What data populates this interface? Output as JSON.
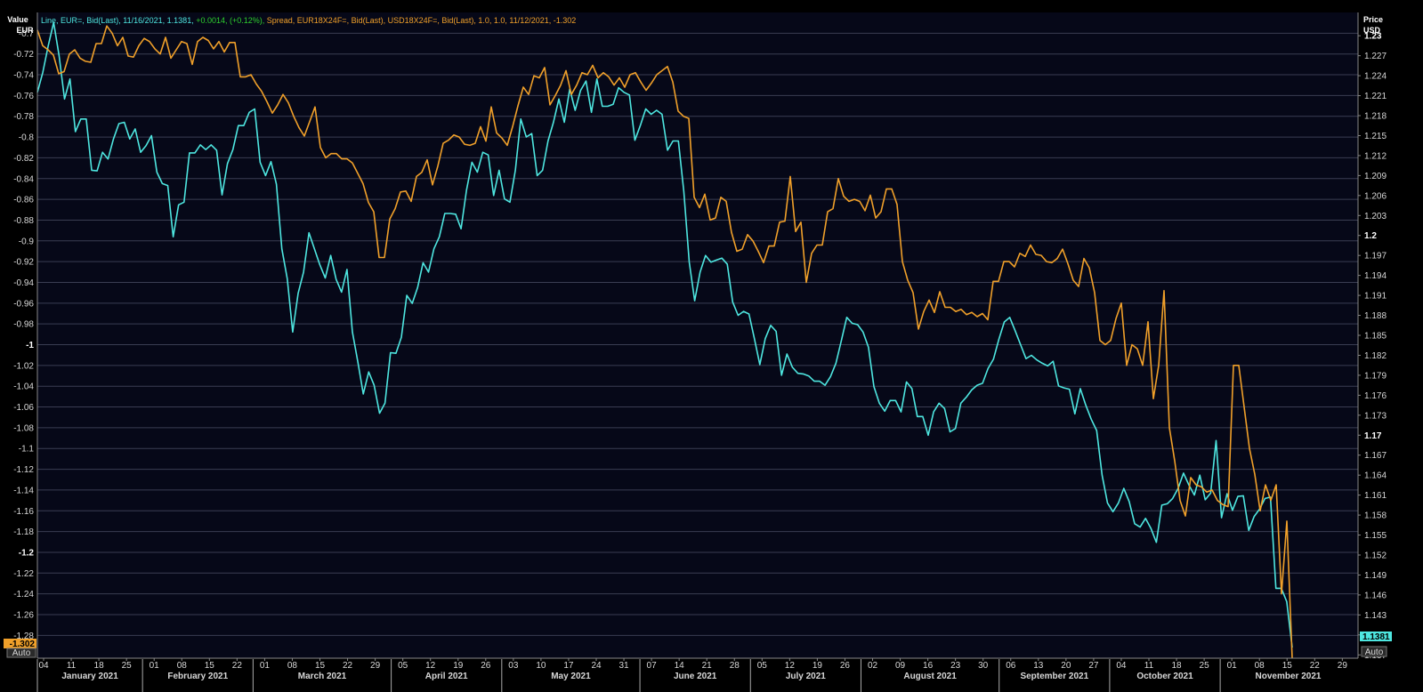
{
  "header": {
    "left_axis_title": "Value",
    "left_axis_unit": "EUR",
    "right_axis_title": "Price",
    "right_axis_unit": "USD",
    "auto_left": "Auto",
    "auto_right": "Auto"
  },
  "legend": {
    "line_part": "Line, EUR=, Bid(Last),  11/16/2021, 1.1381, ",
    "line_change": "+0.0014, (+0.12%), ",
    "spread_part": "Spread, EUR18X24F=, Bid(Last), USD18X24F=, Bid(Last),  1.0, 1.0,  11/12/2021, -1.302"
  },
  "colors": {
    "background": "#060818",
    "grid": "#3a3d52",
    "eurusd": "#4ee6e0",
    "spread": "#f0a02a",
    "change_positive": "#2ed02e"
  },
  "chart_data": {
    "type": "line",
    "x_axis": {
      "month_labels": [
        "January 2021",
        "February 2021",
        "March 2021",
        "April 2021",
        "May 2021",
        "June 2021",
        "July 2021",
        "August 2021",
        "September 2021",
        "October 2021",
        "November 2021"
      ],
      "day_ticks": [
        "04",
        "11",
        "18",
        "25",
        "01",
        "08",
        "15",
        "22",
        "01",
        "08",
        "15",
        "22",
        "29",
        "05",
        "12",
        "19",
        "26",
        "03",
        "10",
        "17",
        "24",
        "31",
        "07",
        "14",
        "21",
        "28",
        "05",
        "12",
        "19",
        "26",
        "02",
        "09",
        "16",
        "23",
        "30",
        "06",
        "13",
        "20",
        "27",
        "04",
        "11",
        "18",
        "25",
        "01",
        "08",
        "15",
        "22",
        "29"
      ]
    },
    "left_axis": {
      "title": "Value EUR",
      "ylim": [
        -1.302,
        -0.68
      ],
      "ticks": [
        "-0.7",
        "-0.72",
        "-0.74",
        "-0.76",
        "-0.78",
        "-0.8",
        "-0.82",
        "-0.84",
        "-0.86",
        "-0.88",
        "-0.9",
        "-0.92",
        "-0.94",
        "-0.96",
        "-0.98",
        "-1",
        "-1.02",
        "-1.04",
        "-1.06",
        "-1.08",
        "-1.1",
        "-1.12",
        "-1.14",
        "-1.16",
        "-1.18",
        "-1.2",
        "-1.22",
        "-1.24",
        "-1.26",
        "-1.28"
      ],
      "bold_ticks": [
        "-1",
        "-1.2"
      ],
      "last_value_label": "-1.302"
    },
    "right_axis": {
      "title": "Price USD",
      "ylim": [
        1.1365,
        1.2335
      ],
      "ticks": [
        "1.23",
        "1.227",
        "1.224",
        "1.221",
        "1.218",
        "1.215",
        "1.212",
        "1.209",
        "1.206",
        "1.203",
        "1.2",
        "1.197",
        "1.194",
        "1.191",
        "1.188",
        "1.185",
        "1.182",
        "1.179",
        "1.176",
        "1.173",
        "1.17",
        "1.167",
        "1.164",
        "1.161",
        "1.158",
        "1.155",
        "1.152",
        "1.149",
        "1.146",
        "1.143",
        "1.14",
        "1.137"
      ],
      "bold_ticks": [
        "1.23",
        "1.2",
        "1.17",
        "1.14"
      ],
      "last_value_label": "1.1381"
    },
    "series": [
      {
        "name": "EUR= Bid(Last)",
        "axis": "right",
        "values": [
          1.2215,
          1.2245,
          1.2285,
          1.232,
          1.227,
          1.2205,
          1.2235,
          1.2156,
          1.2175,
          1.2175,
          1.2098,
          1.2097,
          1.2125,
          1.2115,
          1.2145,
          1.2168,
          1.217,
          1.2145,
          1.216,
          1.2125,
          1.2135,
          1.215,
          1.2095,
          1.2078,
          1.2075,
          1.1998,
          1.2046,
          1.205,
          1.2124,
          1.2124,
          1.2136,
          1.2129,
          1.2136,
          1.2128,
          1.2061,
          1.2108,
          1.2129,
          1.2165,
          1.2165,
          1.2185,
          1.219,
          1.211,
          1.209,
          1.2111,
          1.2077,
          1.198,
          1.1935,
          1.1855,
          1.1913,
          1.1945,
          1.2004,
          1.198,
          1.1956,
          1.1936,
          1.197,
          1.1934,
          1.1915,
          1.1949,
          1.1855,
          1.181,
          1.1762,
          1.1795,
          1.1775,
          1.1733,
          1.1748,
          1.1824,
          1.1823,
          1.1847,
          1.191,
          1.1898,
          1.1922,
          1.1959,
          1.1945,
          1.198,
          1.1998,
          1.2033,
          1.2033,
          1.2032,
          1.201,
          1.2068,
          1.211,
          1.2095,
          1.2125,
          1.2121,
          1.206,
          1.2098,
          1.2055,
          1.205,
          1.2098,
          1.2175,
          1.2148,
          1.2153,
          1.209,
          1.2098,
          1.2142,
          1.217,
          1.2205,
          1.217,
          1.222,
          1.2188,
          1.2218,
          1.2232,
          1.2185,
          1.2235,
          1.2194,
          1.2194,
          1.2197,
          1.2222,
          1.2215,
          1.2211,
          1.2143,
          1.2165,
          1.219,
          1.2182,
          1.2188,
          1.2182,
          1.2128,
          1.2142,
          1.2142,
          1.2066,
          1.196,
          1.1902,
          1.1945,
          1.197,
          1.196,
          1.1963,
          1.1966,
          1.1957,
          1.19,
          1.188,
          1.1886,
          1.1882,
          1.1845,
          1.1806,
          1.1845,
          1.1865,
          1.1856,
          1.179,
          1.1822,
          1.1802,
          1.1793,
          1.1792,
          1.1789,
          1.1781,
          1.1781,
          1.1775,
          1.1788,
          1.1808,
          1.1842,
          1.1877,
          1.1868,
          1.1866,
          1.1855,
          1.1832,
          1.1773,
          1.1748,
          1.1736,
          1.1752,
          1.1752,
          1.1735,
          1.178,
          1.177,
          1.1728,
          1.1728,
          1.17,
          1.1735,
          1.1748,
          1.174,
          1.1705,
          1.171,
          1.1748,
          1.1757,
          1.1768,
          1.1775,
          1.1778,
          1.18,
          1.1814,
          1.1844,
          1.187,
          1.1877,
          1.1857,
          1.1836,
          1.1815,
          1.182,
          1.1813,
          1.1808,
          1.1804,
          1.1811,
          1.1774,
          1.1771,
          1.1769,
          1.1732,
          1.177,
          1.1745,
          1.1724,
          1.1707,
          1.164,
          1.1598,
          1.1585,
          1.1598,
          1.162,
          1.16,
          1.1567,
          1.1562,
          1.1575,
          1.156,
          1.1539,
          1.1595,
          1.1597,
          1.1605,
          1.162,
          1.1643,
          1.1625,
          1.161,
          1.164,
          1.1603,
          1.1613,
          1.1692,
          1.1576,
          1.1612,
          1.1587,
          1.1608,
          1.1609,
          1.1557,
          1.1578,
          1.1589,
          1.1605,
          1.1607,
          1.147,
          1.147,
          1.145,
          1.1381
        ]
      },
      {
        "name": "Spread EUR18X24F= / USD18X24F=",
        "axis": "left",
        "values": [
          -0.697,
          -0.712,
          -0.716,
          -0.721,
          -0.739,
          -0.737,
          -0.72,
          -0.716,
          -0.724,
          -0.727,
          -0.728,
          -0.71,
          -0.71,
          -0.693,
          -0.7,
          -0.712,
          -0.704,
          -0.722,
          -0.723,
          -0.712,
          -0.705,
          -0.708,
          -0.715,
          -0.72,
          -0.704,
          -0.724,
          -0.716,
          -0.708,
          -0.71,
          -0.73,
          -0.708,
          -0.704,
          -0.707,
          -0.715,
          -0.708,
          -0.718,
          -0.709,
          -0.709,
          -0.742,
          -0.742,
          -0.74,
          -0.749,
          -0.756,
          -0.766,
          -0.777,
          -0.769,
          -0.759,
          -0.767,
          -0.78,
          -0.791,
          -0.799,
          -0.785,
          -0.771,
          -0.81,
          -0.82,
          -0.816,
          -0.816,
          -0.821,
          -0.821,
          -0.825,
          -0.835,
          -0.845,
          -0.863,
          -0.872,
          -0.916,
          -0.916,
          -0.879,
          -0.869,
          -0.853,
          -0.852,
          -0.862,
          -0.838,
          -0.834,
          -0.822,
          -0.846,
          -0.828,
          -0.806,
          -0.803,
          -0.798,
          -0.8,
          -0.807,
          -0.808,
          -0.806,
          -0.79,
          -0.804,
          -0.771,
          -0.796,
          -0.801,
          -0.808,
          -0.79,
          -0.77,
          -0.752,
          -0.759,
          -0.741,
          -0.743,
          -0.733,
          -0.769,
          -0.76,
          -0.75,
          -0.736,
          -0.759,
          -0.75,
          -0.738,
          -0.74,
          -0.731,
          -0.743,
          -0.738,
          -0.742,
          -0.75,
          -0.743,
          -0.752,
          -0.74,
          -0.738,
          -0.747,
          -0.755,
          -0.748,
          -0.74,
          -0.736,
          -0.732,
          -0.747,
          -0.775,
          -0.78,
          -0.782,
          -0.858,
          -0.868,
          -0.855,
          -0.88,
          -0.878,
          -0.858,
          -0.862,
          -0.892,
          -0.91,
          -0.908,
          -0.894,
          -0.9,
          -0.91,
          -0.921,
          -0.905,
          -0.905,
          -0.882,
          -0.881,
          -0.838,
          -0.891,
          -0.882,
          -0.94,
          -0.912,
          -0.904,
          -0.904,
          -0.872,
          -0.869,
          -0.84,
          -0.857,
          -0.862,
          -0.86,
          -0.862,
          -0.871,
          -0.856,
          -0.878,
          -0.872,
          -0.85,
          -0.85,
          -0.865,
          -0.92,
          -0.938,
          -0.95,
          -0.985,
          -0.968,
          -0.957,
          -0.969,
          -0.949,
          -0.964,
          -0.964,
          -0.968,
          -0.966,
          -0.971,
          -0.969,
          -0.973,
          -0.97,
          -0.976,
          -0.939,
          -0.939,
          -0.92,
          -0.92,
          -0.925,
          -0.912,
          -0.915,
          -0.904,
          -0.913,
          -0.914,
          -0.92,
          -0.921,
          -0.917,
          -0.908,
          -0.922,
          -0.938,
          -0.944,
          -0.917,
          -0.926,
          -0.95,
          -0.996,
          -1.0,
          -0.996,
          -0.975,
          -0.96,
          -1.02,
          -1.0,
          -1.004,
          -1.02,
          -0.978,
          -1.052,
          -1.02,
          -0.948,
          -1.08,
          -1.112,
          -1.15,
          -1.165,
          -1.128,
          -1.135,
          -1.137,
          -1.142,
          -1.14,
          -1.15,
          -1.154,
          -1.156,
          -1.02,
          -1.02,
          -1.06,
          -1.1,
          -1.125,
          -1.16,
          -1.135,
          -1.15,
          -1.135,
          -1.24,
          -1.17,
          -1.302
        ]
      }
    ]
  }
}
